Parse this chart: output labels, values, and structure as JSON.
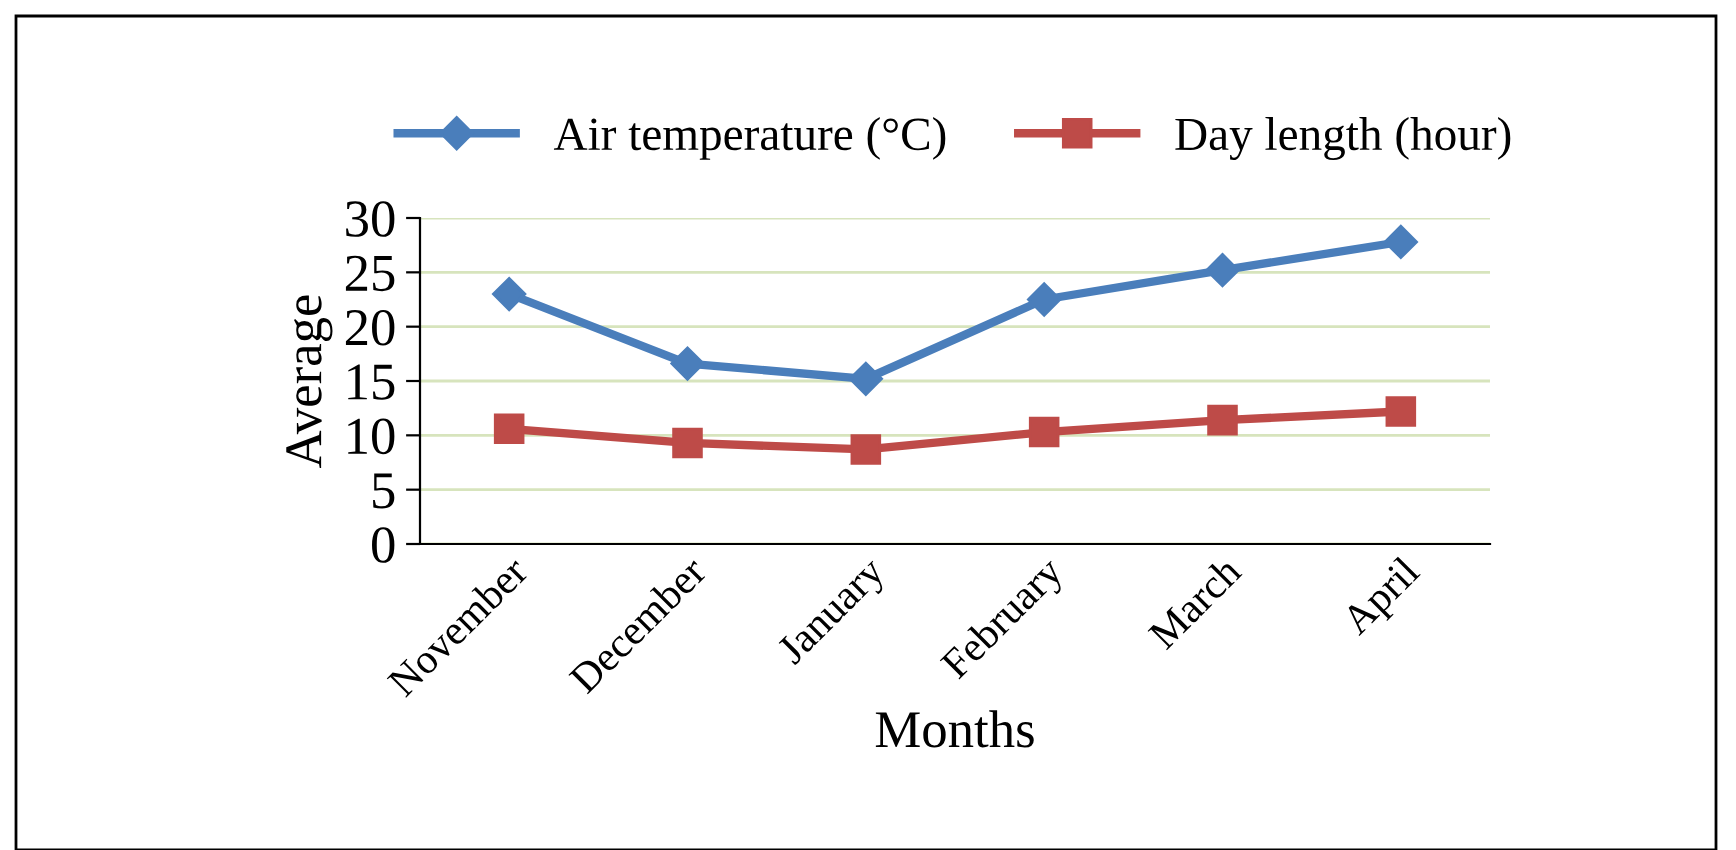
{
  "chart_data": {
    "type": "line",
    "xlabel": "Months",
    "ylabel": "Average",
    "categories": [
      "November",
      "December",
      "January",
      "February",
      "March",
      "April"
    ],
    "series": [
      {
        "name": "Air temperature (°C)",
        "color": "#4a7ebb",
        "marker": "diamond",
        "values": [
          23,
          16.6,
          15.2,
          22.5,
          25.2,
          27.8
        ]
      },
      {
        "name": "Day length (hour)",
        "color": "#be4b48",
        "marker": "square",
        "values": [
          10.6,
          9.3,
          8.7,
          10.3,
          11.4,
          12.2
        ]
      }
    ],
    "ylim": [
      0,
      30
    ],
    "yticks": [
      0,
      5,
      10,
      15,
      20,
      25,
      30
    ],
    "grid": "y",
    "legend": "top",
    "line_style": "solid"
  }
}
